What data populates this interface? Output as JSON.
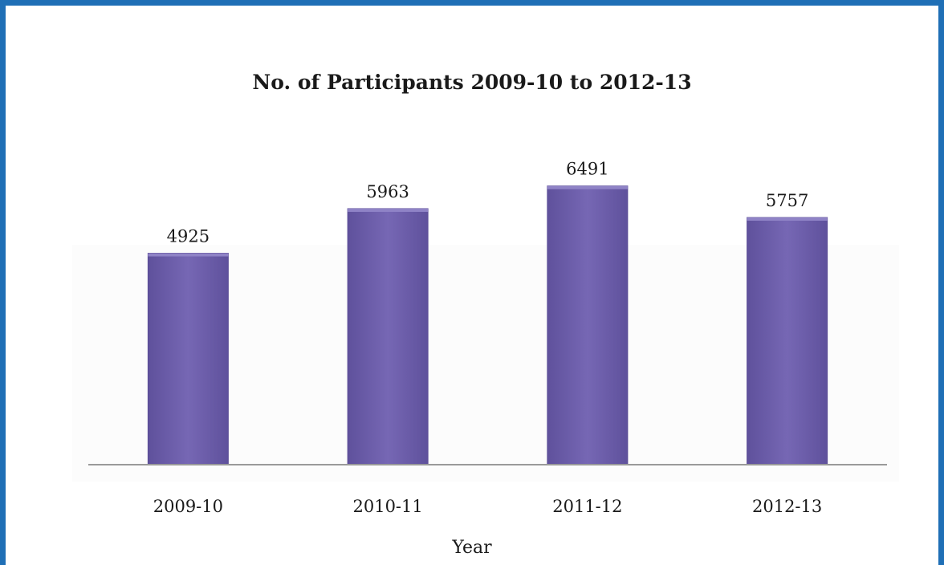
{
  "chart_data": {
    "type": "bar",
    "title": "No. of Participants 2009-10 to 2012-13",
    "xlabel": "Year",
    "ylabel": "",
    "categories": [
      "2009-10",
      "2010-11",
      "2011-12",
      "2012-13"
    ],
    "values": [
      4925,
      5963,
      6491,
      5757
    ],
    "data_labels": [
      "4925",
      "5963",
      "6491",
      "5757"
    ],
    "ylim": [
      0,
      7300
    ],
    "grid": false,
    "legend": "none",
    "colors": {
      "bar": "#7061ad",
      "bar_edge": "#5b4d96",
      "axis": "#9a9a9a",
      "frame": "#1f6fb6"
    }
  }
}
